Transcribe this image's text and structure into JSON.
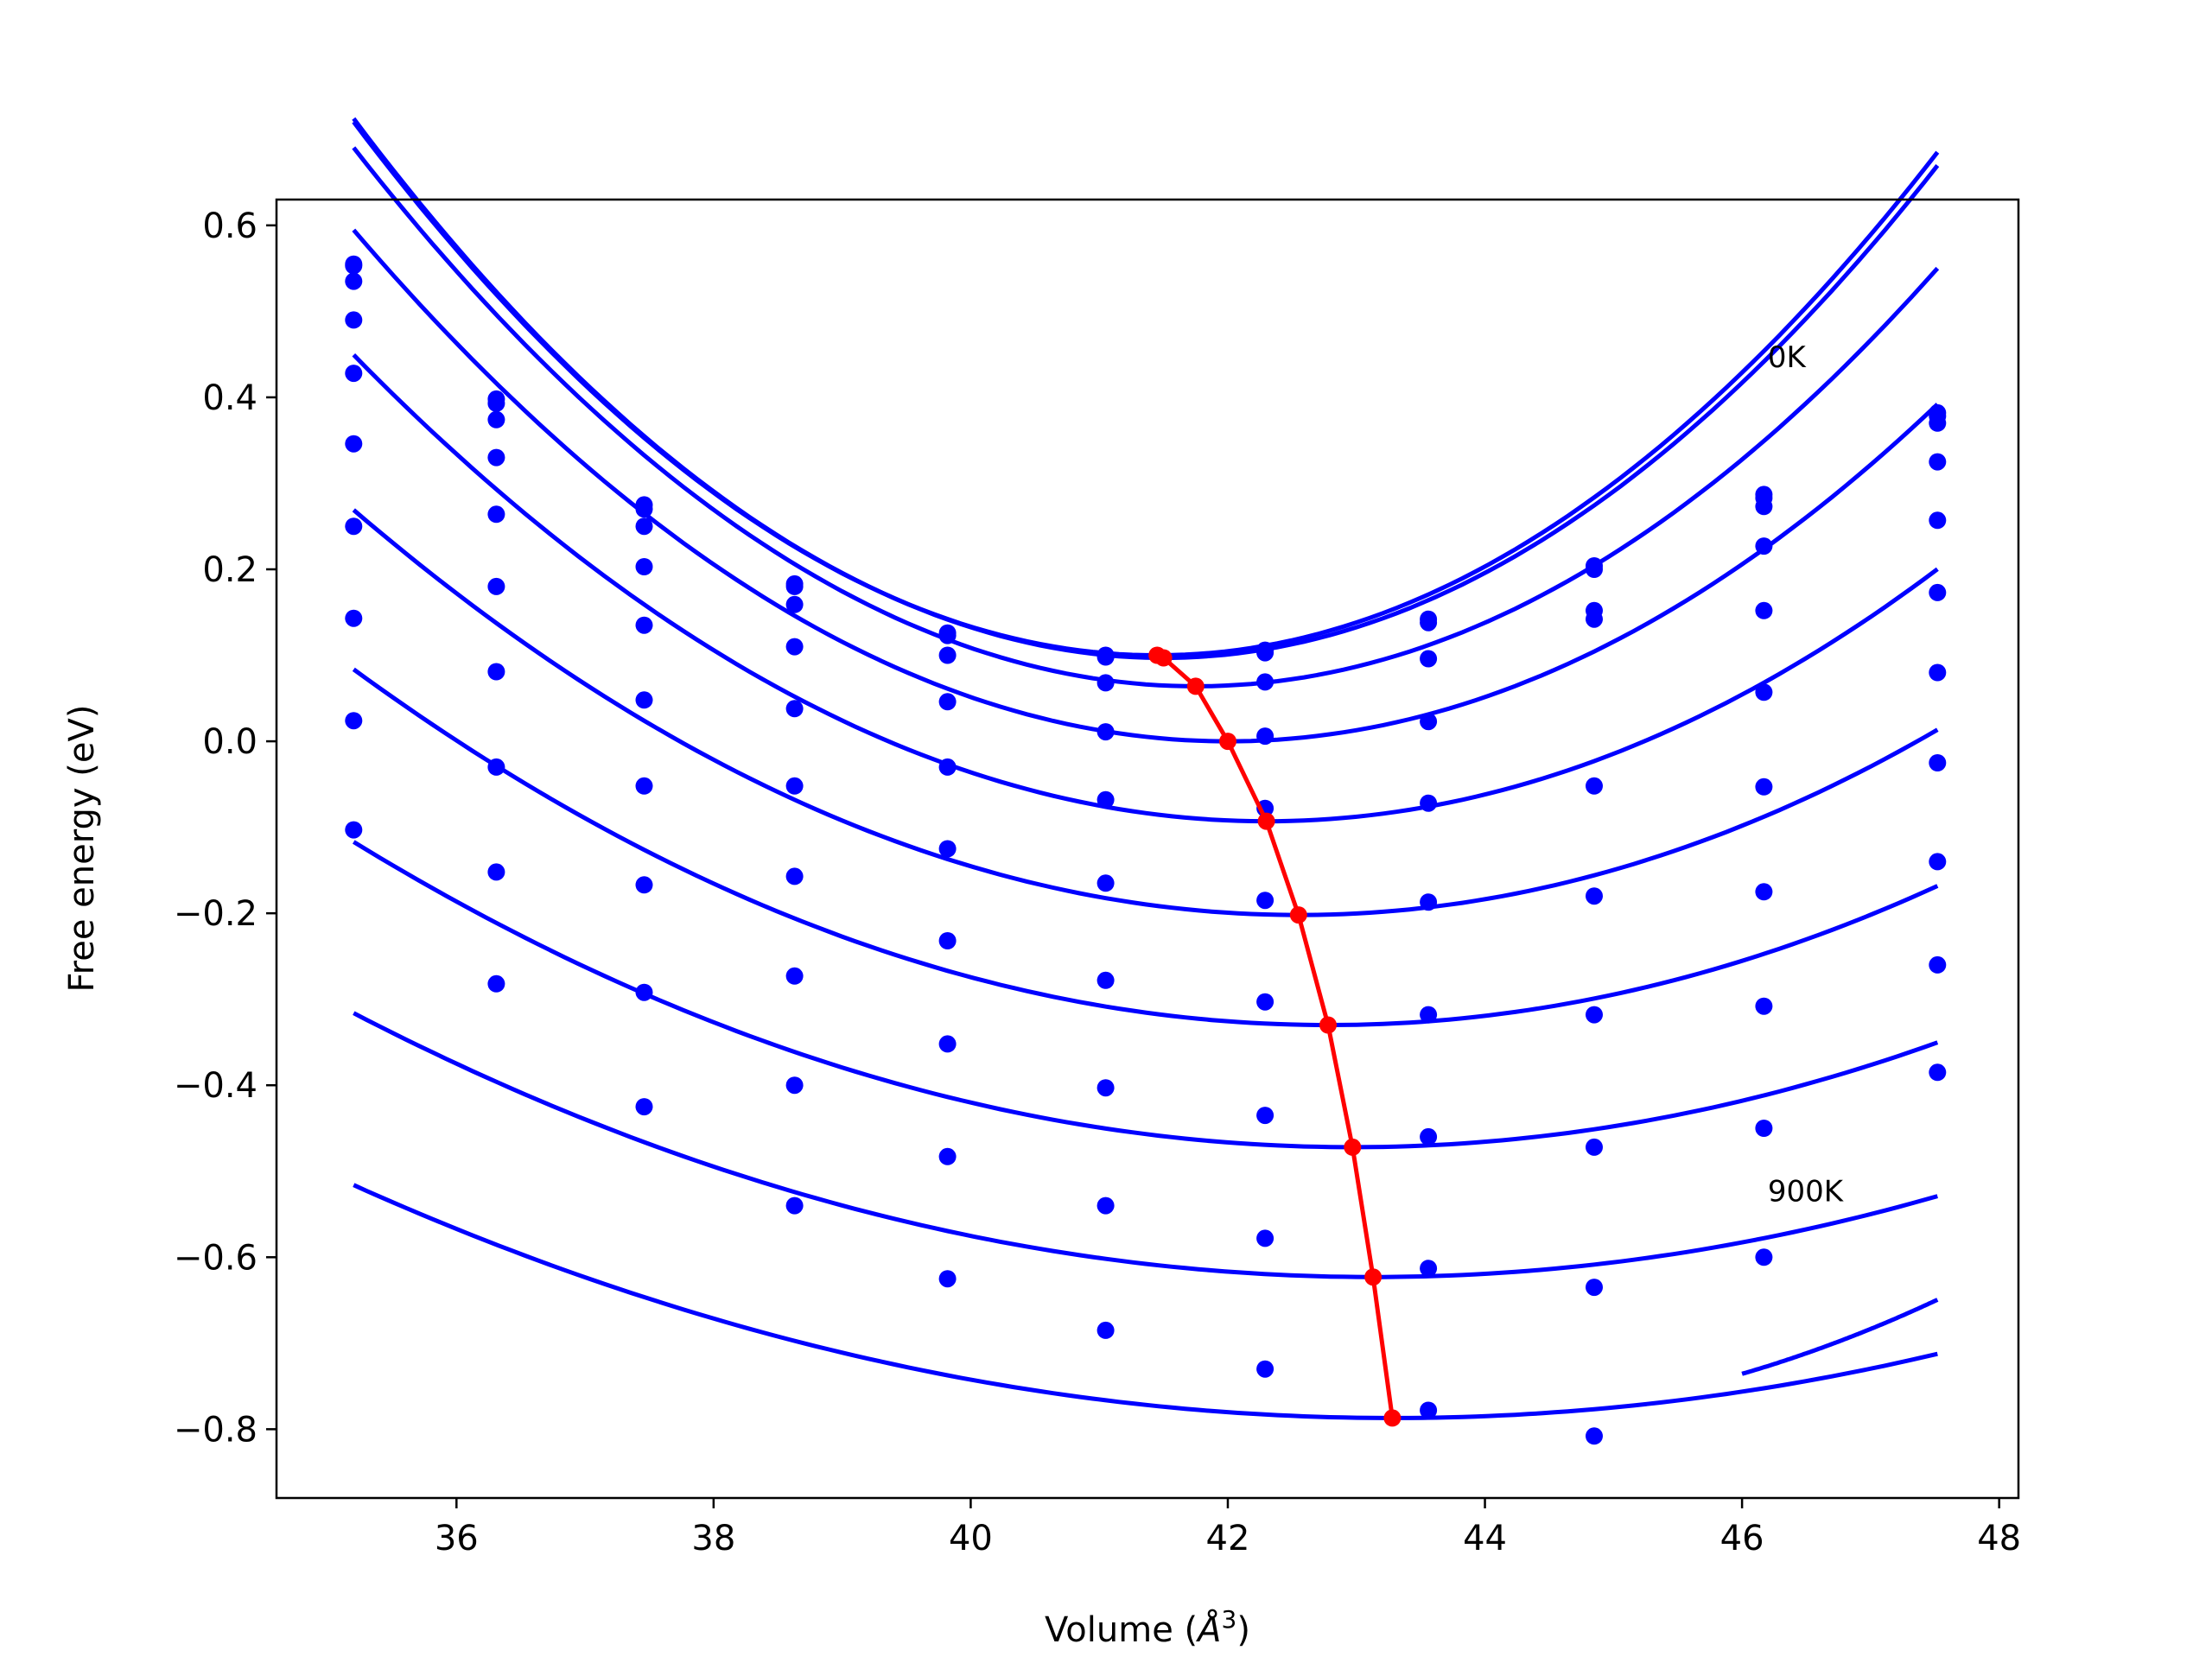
{
  "chart_data": {
    "type": "line",
    "xlabel": "Volume (",
    "xlabel_unit": "Å",
    "xlabel_exp": "3",
    "xlabel_close": ")",
    "ylabel": "Free energy (eV)",
    "xlim": [
      34.6,
      48.15
    ],
    "ylim": [
      -0.88,
      0.63
    ],
    "xticks": [
      36,
      38,
      40,
      42,
      44,
      46,
      48
    ],
    "yticks": [
      0.6,
      0.4,
      0.2,
      0.0,
      -0.2,
      -0.4,
      -0.6,
      -0.8
    ],
    "xtick_labels": [
      "36",
      "38",
      "40",
      "42",
      "44",
      "46",
      "48"
    ],
    "ytick_labels": [
      "0.6",
      "0.4",
      "0.2",
      "0.0",
      "−0.2",
      "−0.4",
      "−0.6",
      "−0.8"
    ],
    "annotations": [
      {
        "text": "0K",
        "x": 46.2,
        "y": 0.435
      },
      {
        "text": "900K",
        "x": 46.2,
        "y": -0.535
      }
    ],
    "colors": {
      "series": "#0000ff",
      "minimum": "#ff0000"
    },
    "x": [
      35.2,
      36.31,
      37.46,
      38.63,
      39.82,
      41.05,
      42.29,
      43.56,
      44.85,
      46.17,
      47.52
    ],
    "series": [
      {
        "points_y": [
          0.555,
          0.398,
          0.275,
          0.183,
          0.126,
          0.1,
          0.106,
          0.142,
          0.204,
          0.287,
          0.382
        ],
        "fit": {
          "a": 0.01588,
          "v0": 41.45,
          "e0": 0.1
        }
      },
      {
        "points_y": [
          0.553,
          0.393,
          0.27,
          0.18,
          0.123,
          0.098,
          0.103,
          0.138,
          0.2,
          0.283,
          0.378
        ],
        "fit": {
          "a": 0.0158,
          "v0": 41.5,
          "e0": 0.097
        }
      },
      {
        "points_y": [
          0.535,
          0.374,
          0.25,
          0.159,
          0.1,
          0.068,
          0.069,
          0.096,
          0.152,
          0.273,
          0.37
        ],
        "fit": {
          "a": 0.0146,
          "v0": 41.75,
          "e0": 0.064
        }
      },
      {
        "points_y": [
          0.49,
          0.33,
          0.203,
          0.11,
          0.046,
          0.011,
          0.006,
          0.023,
          0.142,
          0.227,
          0.325
        ],
        "fit": {
          "a": 0.01286,
          "v0": 42.0,
          "e0": 0.0
        }
      },
      {
        "points_y": [
          0.428,
          0.264,
          0.135,
          0.038,
          -0.03,
          -0.068,
          -0.078,
          -0.072,
          -0.052,
          0.152,
          0.257
        ],
        "fit": {
          "a": 0.01076,
          "v0": 42.3,
          "e0": -0.093
        }
      },
      {
        "points_y": [
          0.346,
          0.18,
          0.048,
          -0.052,
          -0.125,
          -0.165,
          -0.185,
          -0.187,
          -0.18,
          0.057,
          0.173
        ],
        "fit": {
          "a": 0.00872,
          "v0": 42.55,
          "e0": -0.202
        }
      },
      {
        "points_y": [
          0.25,
          0.081,
          -0.052,
          -0.157,
          -0.232,
          -0.278,
          -0.303,
          -0.318,
          -0.318,
          -0.053,
          0.08
        ],
        "fit": {
          "a": 0.0072,
          "v0": 42.78,
          "e0": -0.33
        }
      },
      {
        "points_y": [
          0.143,
          -0.03,
          -0.167,
          -0.273,
          -0.352,
          -0.403,
          -0.435,
          -0.46,
          -0.472,
          -0.175,
          -0.025
        ],
        "fit": {
          "a": 0.00588,
          "v0": 42.97,
          "e0": -0.472
        }
      },
      {
        "points_y": [
          0.024,
          -0.152,
          -0.292,
          -0.4,
          -0.483,
          -0.54,
          -0.578,
          -0.613,
          -0.635,
          -0.308,
          -0.14
        ],
        "fit": {
          "a": 0.00488,
          "v0": 43.13,
          "e0": -0.623
        }
      },
      {
        "points_y": [
          -0.103,
          -0.282,
          -0.425,
          -0.54,
          -0.625,
          -0.685,
          -0.73,
          -0.778,
          -0.808,
          -0.45,
          -0.26
        ],
        "fit": {
          "a": 0.00415,
          "v0": 43.28,
          "e0": -0.787
        }
      },
      {
        "points_y": [
          null,
          null,
          null,
          null,
          null,
          null,
          null,
          null,
          null,
          -0.6,
          -0.385
        ],
        "fit": {
          "a": 0.0087,
          "v0": 43.5,
          "e0": -0.79
        }
      }
    ],
    "minimum_curve": {
      "x": [
        41.45,
        41.5,
        41.75,
        42.0,
        42.3,
        42.55,
        42.78,
        42.97,
        43.13,
        43.28
      ],
      "y": [
        0.1,
        0.097,
        0.064,
        0.0,
        -0.093,
        -0.202,
        -0.33,
        -0.472,
        -0.623,
        -0.787
      ]
    }
  }
}
